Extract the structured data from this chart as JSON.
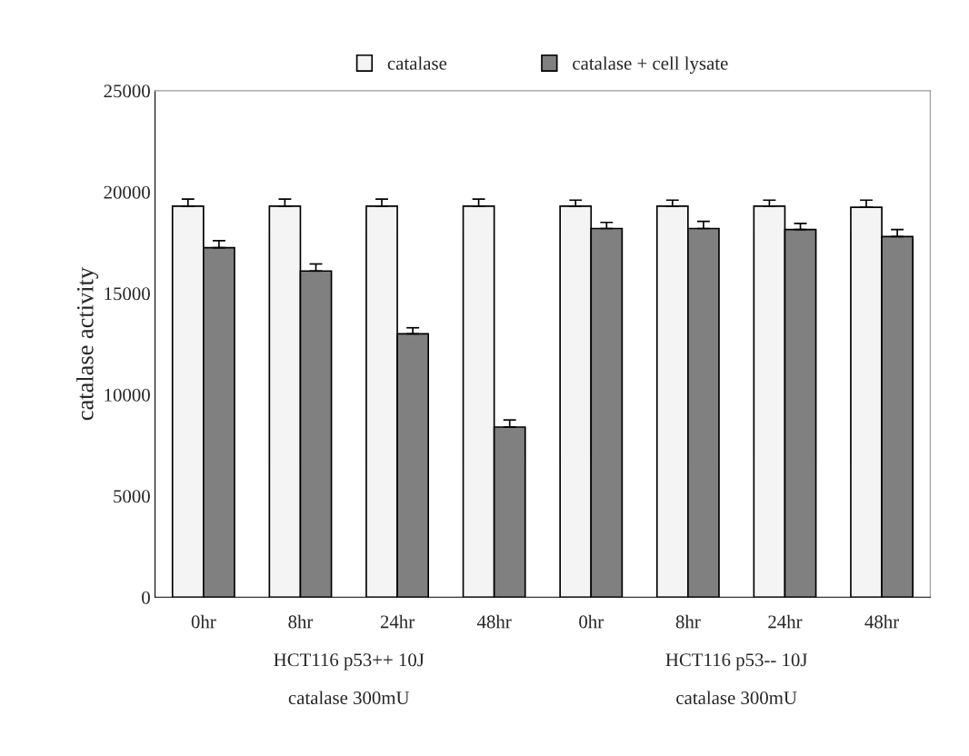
{
  "chart_data": {
    "type": "bar",
    "ylabel": "catalase activity",
    "categories": [
      "0hr",
      "8hr",
      "24hr",
      "48hr",
      "0hr",
      "8hr",
      "24hr",
      "48hr"
    ],
    "series": [
      {
        "name": "catalase",
        "color": "#f4f4f4",
        "values": [
          19300,
          19300,
          19300,
          19300,
          19300,
          19300,
          19300,
          19250
        ],
        "errors": [
          [
            19300,
            19650
          ],
          [
            19300,
            19650
          ],
          [
            19300,
            19650
          ],
          [
            19300,
            19650
          ],
          [
            19300,
            19600
          ],
          [
            19300,
            19600
          ],
          [
            19300,
            19600
          ],
          [
            19250,
            19600
          ]
        ]
      },
      {
        "name": "catalase + cell lysate",
        "color": "#808080",
        "values": [
          17250,
          16100,
          13000,
          8400,
          18200,
          18200,
          18150,
          17800
        ],
        "errors": [
          [
            17250,
            17600
          ],
          [
            16100,
            16450
          ],
          [
            13000,
            13300
          ],
          [
            8400,
            8750
          ],
          [
            18200,
            18500
          ],
          [
            18200,
            18550
          ],
          [
            18150,
            18450
          ],
          [
            17800,
            18150
          ]
        ]
      }
    ],
    "ylim": [
      0,
      25000
    ],
    "yticks": [
      0,
      5000,
      10000,
      15000,
      20000,
      25000
    ],
    "grid": false,
    "legend": "top",
    "annotations": [
      "HCT116 p53++ 10J",
      "catalase 300mU",
      "HCT116 p53-- 10J",
      "catalase 300mU"
    ]
  }
}
